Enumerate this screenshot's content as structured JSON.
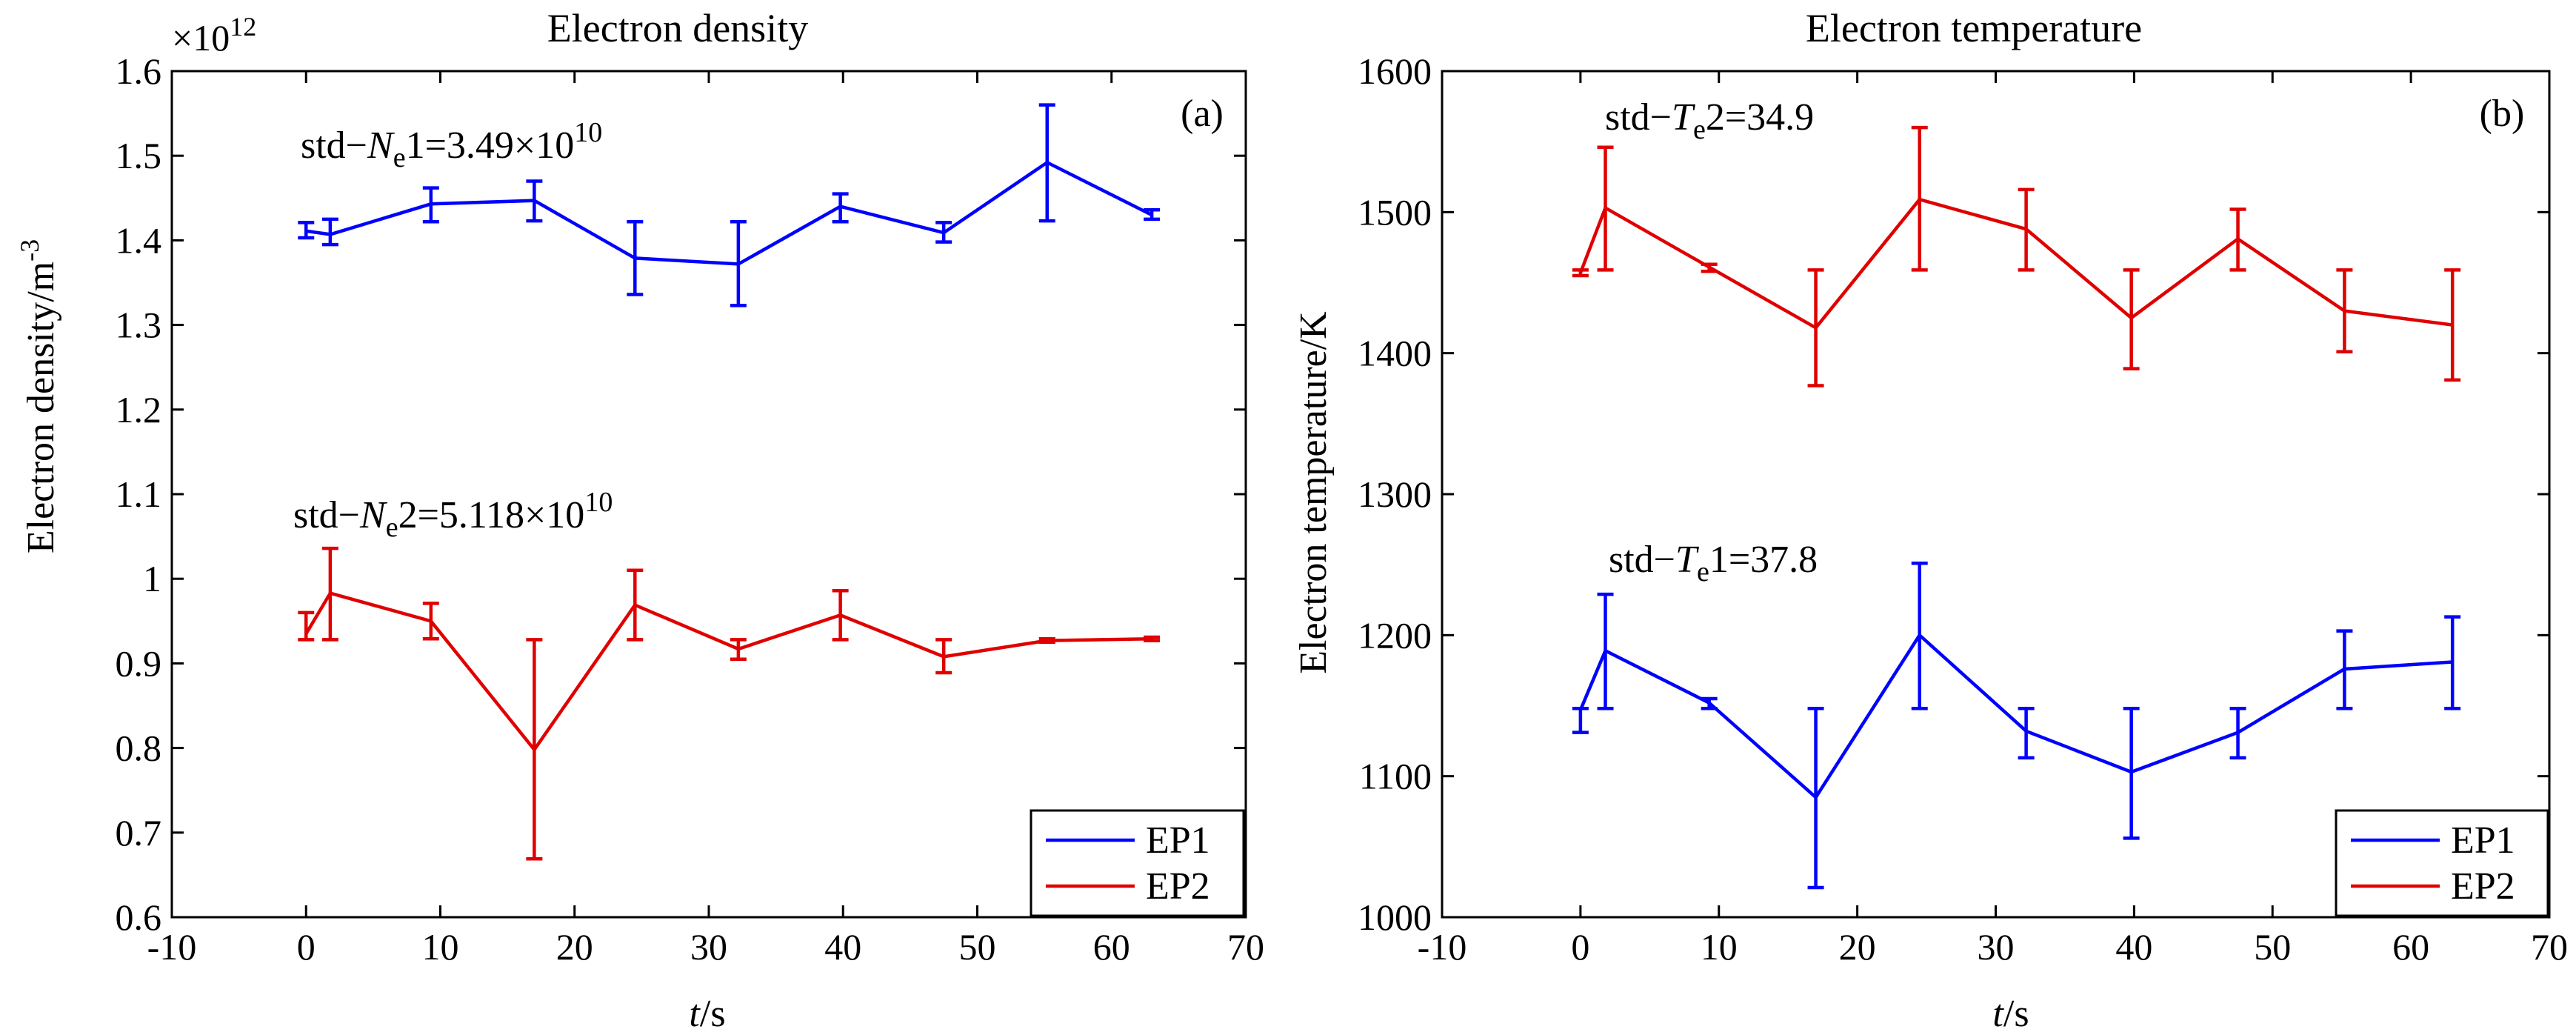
{
  "chart_data": [
    {
      "type": "line",
      "panel_label": "(a)",
      "title": "Electron density",
      "xlabel": "t/s",
      "xlabel_italic": "t",
      "xlabel_unit": "/s",
      "ylabel": "Electron density/m⁻³",
      "ylabel_base": "Electron density/m",
      "ylabel_sup": "-3",
      "exponent_base": "×10",
      "exponent_power": "12",
      "xlim": [
        -10,
        70
      ],
      "ylim": [
        0.6,
        1.6
      ],
      "xticks": [
        -10,
        0,
        10,
        20,
        30,
        40,
        50,
        60,
        70
      ],
      "xtick_labels": [
        "-10",
        "0",
        "10",
        "20",
        "30",
        "40",
        "50",
        "60",
        "70"
      ],
      "yticks": [
        0.6,
        0.7,
        0.8,
        0.9,
        1.0,
        1.1,
        1.2,
        1.3,
        1.4,
        1.5,
        1.6
      ],
      "ytick_labels": [
        "0.6",
        "0.7",
        "0.8",
        "0.9",
        "1",
        "1.1",
        "1.2",
        "1.3",
        "1.4",
        "1.5",
        "1.6"
      ],
      "legend": {
        "position": "bottom-right",
        "entries": [
          "EP1",
          "EP2"
        ]
      },
      "annotations": [
        {
          "prefix": "std−",
          "italic": "N",
          "sub": "e",
          "suffix": "1=3.49×10",
          "sup": "10",
          "series": "EP1"
        },
        {
          "prefix": "std−",
          "italic": "N",
          "sub": "e",
          "suffix": "2=5.118×10",
          "sup": "10",
          "series": "EP2"
        }
      ],
      "series": [
        {
          "name": "EP1",
          "color": "#0000ff",
          "x": [
            0,
            1.8,
            9.3,
            17,
            24.5,
            32.2,
            39.8,
            47.5,
            55.2,
            63
          ],
          "y": [
            1.411,
            1.407,
            1.443,
            1.447,
            1.379,
            1.372,
            1.44,
            1.409,
            1.492,
            1.43
          ],
          "err_low": [
            1.403,
            1.395,
            1.422,
            1.423,
            1.336,
            1.323,
            1.422,
            1.398,
            1.423,
            1.425
          ],
          "err_high": [
            1.421,
            1.425,
            1.462,
            1.47,
            1.422,
            1.422,
            1.455,
            1.421,
            1.56,
            1.436
          ]
        },
        {
          "name": "EP2",
          "color": "#e00000",
          "x": [
            0,
            1.8,
            9.3,
            17,
            24.5,
            32.2,
            39.8,
            47.5,
            55.2,
            63
          ],
          "y": [
            0.935,
            0.983,
            0.95,
            0.798,
            0.969,
            0.917,
            0.957,
            0.908,
            0.927,
            0.929
          ],
          "err_low": [
            0.928,
            0.928,
            0.929,
            0.669,
            0.928,
            0.905,
            0.928,
            0.889,
            0.925,
            0.927
          ],
          "err_high": [
            0.96,
            1.036,
            0.971,
            0.928,
            1.01,
            0.928,
            0.986,
            0.928,
            0.929,
            0.931
          ]
        }
      ]
    },
    {
      "type": "line",
      "panel_label": "(b)",
      "title": "Electron temperature",
      "xlabel": "t/s",
      "xlabel_italic": "t",
      "xlabel_unit": "/s",
      "ylabel": "Electron temperature/K",
      "xlim": [
        -10,
        70
      ],
      "ylim": [
        1000,
        1600
      ],
      "xticks": [
        -10,
        0,
        10,
        20,
        30,
        40,
        50,
        60,
        70
      ],
      "xtick_labels": [
        "-10",
        "0",
        "10",
        "20",
        "30",
        "40",
        "50",
        "60",
        "70"
      ],
      "yticks": [
        1000,
        1100,
        1200,
        1300,
        1400,
        1500,
        1600
      ],
      "ytick_labels": [
        "1000",
        "1100",
        "1200",
        "1300",
        "1400",
        "1500",
        "1600"
      ],
      "legend": {
        "position": "bottom-right",
        "entries": [
          "EP1",
          "EP2"
        ]
      },
      "annotations": [
        {
          "prefix": "std−",
          "italic": "T",
          "sub": "e",
          "suffix": "2=34.9",
          "sup": "",
          "series": "EP2"
        },
        {
          "prefix": "std−",
          "italic": "T",
          "sub": "e",
          "suffix": "1=37.8",
          "sup": "",
          "series": "EP1"
        }
      ],
      "series": [
        {
          "name": "EP1",
          "color": "#0000ff",
          "x": [
            0,
            1.8,
            9.3,
            17,
            24.5,
            32.2,
            39.8,
            47.5,
            55.2,
            63
          ],
          "y": [
            1147,
            1189,
            1152,
            1085,
            1200,
            1132,
            1103,
            1131,
            1176,
            1181
          ],
          "err_low": [
            1131,
            1148,
            1148,
            1021,
            1148,
            1113,
            1056,
            1113,
            1148,
            1148
          ],
          "err_high": [
            1148,
            1229,
            1155,
            1148,
            1251,
            1148,
            1148,
            1148,
            1203,
            1213
          ]
        },
        {
          "name": "EP2",
          "color": "#e00000",
          "x": [
            0,
            1.8,
            9.3,
            17,
            24.5,
            32.2,
            39.8,
            47.5,
            55.2,
            63
          ],
          "y": [
            1457,
            1503,
            1461,
            1418,
            1509,
            1488,
            1425,
            1481,
            1430,
            1420
          ],
          "err_low": [
            1455,
            1459,
            1458,
            1377,
            1459,
            1459,
            1389,
            1459,
            1401,
            1381
          ],
          "err_high": [
            1459,
            1546,
            1463,
            1459,
            1560,
            1516,
            1459,
            1502,
            1459,
            1459
          ]
        }
      ]
    }
  ]
}
